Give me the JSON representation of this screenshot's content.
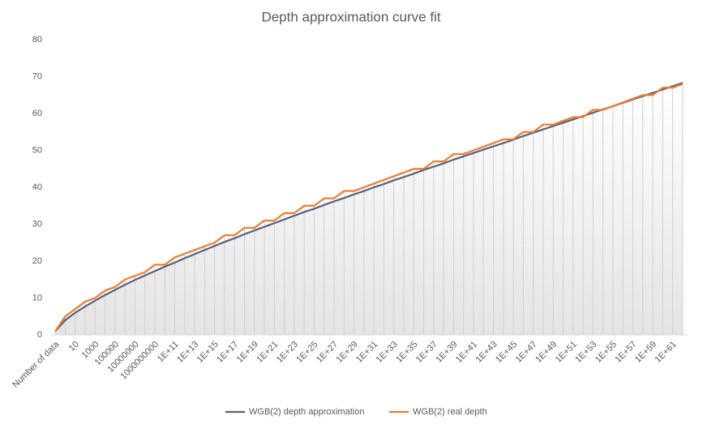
{
  "chart_data": {
    "type": "line",
    "title": "Depth approximation curve fit",
    "categories": [
      "Number of data",
      null,
      "10",
      null,
      "1000",
      null,
      "100000",
      null,
      "10000000",
      null,
      "1000000000",
      null,
      "1E+11",
      null,
      "1E+13",
      null,
      "1E+15",
      null,
      "1E+17",
      null,
      "1E+19",
      null,
      "1E+21",
      null,
      "1E+23",
      null,
      "1E+25",
      null,
      "1E+27",
      null,
      "1E+29",
      null,
      "1E+31",
      null,
      "1E+33",
      null,
      "1E+35",
      null,
      "1E+37",
      null,
      "1E+39",
      null,
      "1E+41",
      null,
      "1E+43",
      null,
      "1E+45",
      null,
      "1E+47",
      null,
      "1E+49",
      null,
      "1E+51",
      null,
      "1E+53",
      null,
      "1E+55",
      null,
      "1E+57",
      null,
      "1E+59",
      null,
      "1E+61",
      null
    ],
    "series": [
      {
        "name": "WGB(2) depth approximation",
        "color": "#5b6279",
        "values": [
          1,
          4,
          6,
          7.7,
          9.3,
          10.8,
          12.2,
          13.6,
          14.9,
          16.1,
          17.3,
          18.5,
          19.6,
          20.8,
          21.9,
          23,
          24.1,
          25.2,
          26.2,
          27.3,
          28.3,
          29.3,
          30.3,
          31.3,
          32.3,
          33.3,
          34.2,
          35.2,
          36.2,
          37.1,
          38.1,
          39,
          40,
          40.9,
          41.9,
          42.8,
          43.7,
          44.7,
          45.6,
          46.5,
          47.5,
          48.4,
          49.3,
          50.2,
          51.1,
          52,
          52.9,
          53.9,
          54.8,
          55.7,
          56.6,
          57.5,
          58.4,
          59.3,
          60.2,
          61.1,
          62,
          62.9,
          63.8,
          64.7,
          65.6,
          66.5,
          67.4,
          68.3
        ]
      },
      {
        "name": "WGB(2) real depth",
        "color": "#ed7d31",
        "values": [
          1,
          5,
          7,
          9,
          10,
          12,
          13,
          15,
          16,
          17,
          19,
          19,
          21,
          22,
          23,
          24,
          25,
          27,
          27,
          29,
          29,
          31,
          31,
          33,
          33,
          35,
          35,
          37,
          37,
          39,
          39,
          40,
          41,
          42,
          43,
          44,
          45,
          45,
          47,
          47,
          49,
          49,
          50,
          51,
          52,
          53,
          53,
          55,
          55,
          57,
          57,
          58,
          59,
          59,
          61,
          61,
          62,
          63,
          64,
          65,
          65,
          67,
          67,
          68
        ]
      }
    ],
    "ylim": [
      0,
      80
    ],
    "yticks": [
      0,
      10,
      20,
      30,
      40,
      50,
      60,
      70,
      80
    ],
    "grid": false,
    "drop_lines": true,
    "legend": "bottom"
  }
}
